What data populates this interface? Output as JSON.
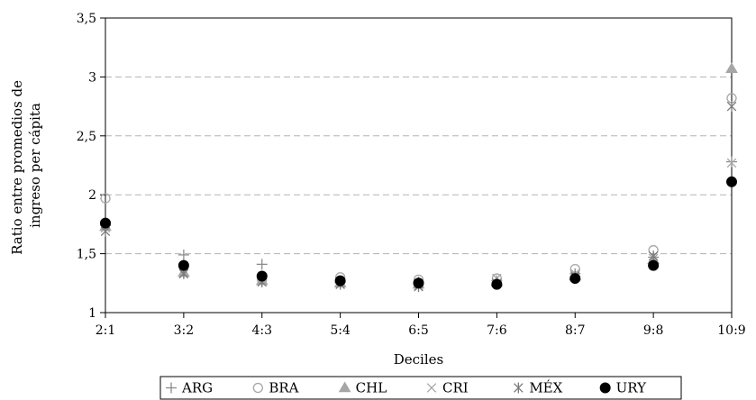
{
  "chart_data": {
    "type": "scatter",
    "title": "",
    "xlabel": "Deciles",
    "ylabel_lines": [
      "Ratio entre promedios de",
      "ingreso per cápita"
    ],
    "categories": [
      "2:1",
      "3:2",
      "4:3",
      "5:4",
      "6:5",
      "7:6",
      "8:7",
      "9:8",
      "10:9"
    ],
    "ylim": [
      1,
      3.5
    ],
    "yticks": [
      1,
      1.5,
      2,
      2.5,
      3,
      3.5
    ],
    "ytick_labels": [
      "1",
      "1,5",
      "2",
      "2,5",
      "3",
      "3,5"
    ],
    "grid": "horizontal dashed",
    "legend_position": "bottom",
    "series": [
      {
        "name": "ARG",
        "marker": "plus",
        "color": "#8c8c8c",
        "values": [
          1.74,
          1.49,
          1.41,
          1.26,
          1.26,
          1.27,
          1.33,
          1.47,
          2.28
        ]
      },
      {
        "name": "BRA",
        "marker": "circle-open",
        "color": "#a6a6a6",
        "values": [
          1.97,
          1.39,
          1.28,
          1.3,
          1.28,
          1.29,
          1.37,
          1.53,
          2.82
        ]
      },
      {
        "name": "CHL",
        "marker": "triangle",
        "color": "#a6a6a6",
        "values": [
          1.73,
          1.34,
          1.27,
          1.25,
          1.24,
          1.26,
          1.31,
          1.45,
          3.07
        ]
      },
      {
        "name": "CRI",
        "marker": "x",
        "color": "#a6a6a6",
        "values": [
          1.72,
          1.33,
          1.27,
          1.24,
          1.23,
          1.29,
          1.33,
          1.46,
          2.27
        ]
      },
      {
        "name": "MÉX",
        "marker": "asterisk",
        "color": "#7a7a7a",
        "values": [
          1.69,
          1.33,
          1.26,
          1.24,
          1.22,
          1.25,
          1.31,
          1.48,
          2.75
        ]
      },
      {
        "name": "URY",
        "marker": "circle-filled",
        "color": "#000000",
        "values": [
          1.76,
          1.4,
          1.31,
          1.27,
          1.25,
          1.24,
          1.29,
          1.4,
          2.11
        ]
      }
    ]
  }
}
